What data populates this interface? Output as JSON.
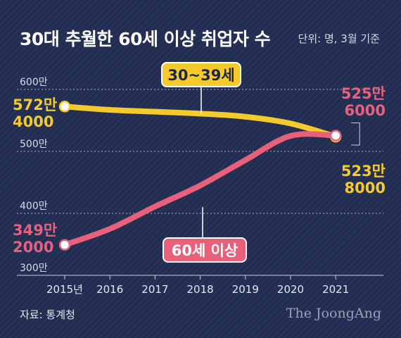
{
  "header": {
    "title": "30대 추월한 60세 이상 취업자 수",
    "unit_note": "단위: 명, 3월 기준"
  },
  "footer": {
    "source": "자료: 통계청",
    "credit": "The JoongAng"
  },
  "colors": {
    "background": "#222d52",
    "series_30s": "#f5cb2c",
    "series_60plus": "#e8607a",
    "axis_text": "#d8dbe6"
  },
  "chart_data": {
    "type": "line",
    "title": "30대 추월한 60세 이상 취업자 수",
    "unit": "단위: 명, 3월 기준",
    "x": [
      "2015년",
      "2016",
      "2017",
      "2018",
      "2019",
      "2020",
      "2021"
    ],
    "y_ticks": [
      {
        "value": 3000000,
        "label": "300만"
      },
      {
        "value": 4000000,
        "label": "400만"
      },
      {
        "value": 5000000,
        "label": "500만"
      },
      {
        "value": 6000000,
        "label": "600만"
      }
    ],
    "ylim": [
      3000000,
      6000000
    ],
    "grid": "dashed horizontal",
    "series": [
      {
        "name": "30~39세",
        "color": "#f5cb2c",
        "values": [
          5724000,
          5670000,
          5640000,
          5610000,
          5560000,
          5450000,
          5238000
        ],
        "start_label": [
          "572만",
          "4000"
        ],
        "end_label": [
          "523만",
          "8000"
        ]
      },
      {
        "name": "60세 이상",
        "color": "#e8607a",
        "values": [
          3492000,
          3750000,
          4110000,
          4450000,
          4860000,
          5250000,
          5256000
        ],
        "start_label": [
          "349만",
          "2000"
        ],
        "end_label": [
          "525만",
          "6000"
        ]
      }
    ]
  }
}
